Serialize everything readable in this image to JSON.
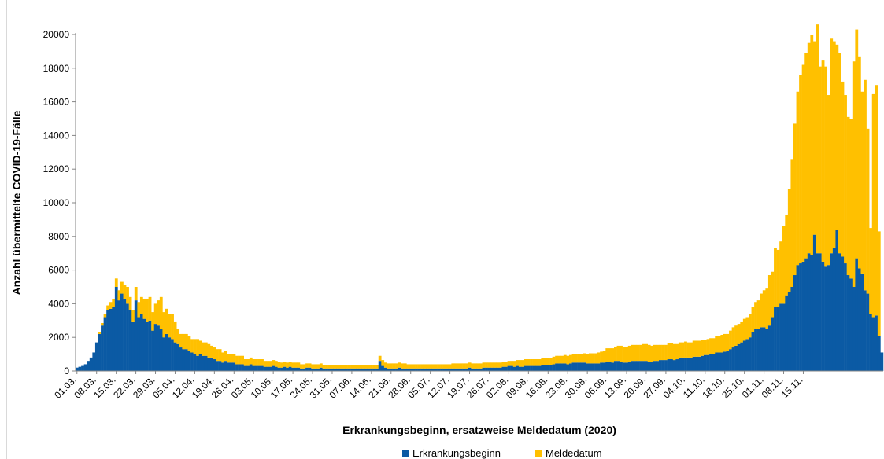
{
  "chart_data": {
    "type": "bar",
    "stacked": true,
    "xlabel": "Erkrankungsbeginn, ersatzweise Meldedatum (2020)",
    "ylabel": "Anzahl übermittelte COVID-19-Fälle",
    "ylim": [
      0,
      20000
    ],
    "y_ticks": [
      "0",
      "2000",
      "4000",
      "6000",
      "8000",
      "10000",
      "12000",
      "14000",
      "16000",
      "18000",
      "20000"
    ],
    "x_tick_labels": [
      "01.03.",
      "08.03.",
      "15.03.",
      "22.03.",
      "29.03.",
      "05.04.",
      "12.04.",
      "19.04.",
      "26.04.",
      "03.05.",
      "10.05.",
      "17.05.",
      "24.05.",
      "31.05.",
      "07.06.",
      "14.06.",
      "21.06.",
      "28.06.",
      "05.07.",
      "12.07.",
      "19.07.",
      "26.07.",
      "02.08.",
      "09.08.",
      "16.08.",
      "23.08.",
      "30.08.",
      "06.09.",
      "13.09.",
      "20.09.",
      "27.09.",
      "04.10.",
      "11.10.",
      "18.10.",
      "25.10.",
      "01.11.",
      "08.11.",
      "15.11."
    ],
    "legend_position": "bottom",
    "grid": false,
    "series": [
      {
        "name": "Erkrankungsbeginn",
        "color": "#0b5aa4",
        "values": [
          200,
          250,
          300,
          400,
          600,
          800,
          1100,
          1700,
          2200,
          2700,
          3200,
          3600,
          3700,
          3800,
          5000,
          4200,
          4600,
          4300,
          4000,
          3600,
          2900,
          4200,
          3200,
          3400,
          3100,
          2900,
          3000,
          2400,
          2800,
          2700,
          2500,
          2000,
          2200,
          2000,
          1900,
          1700,
          1600,
          1400,
          1300,
          1300,
          1200,
          1100,
          1000,
          900,
          1000,
          900,
          900,
          800,
          800,
          700,
          600,
          600,
          500,
          600,
          500,
          500,
          500,
          400,
          400,
          400,
          300,
          300,
          400,
          300,
          300,
          300,
          300,
          250,
          250,
          250,
          300,
          250,
          200,
          200,
          250,
          200,
          250,
          200,
          200,
          200,
          150,
          150,
          200,
          200,
          150,
          150,
          150,
          200,
          150,
          150,
          150,
          150,
          150,
          150,
          150,
          150,
          150,
          150,
          150,
          150,
          150,
          150,
          150,
          150,
          150,
          150,
          150,
          150,
          600,
          300,
          200,
          150,
          150,
          150,
          150,
          200,
          150,
          150,
          150,
          150,
          150,
          150,
          150,
          150,
          150,
          150,
          150,
          150,
          150,
          150,
          150,
          150,
          150,
          150,
          150,
          150,
          150,
          150,
          150,
          150,
          200,
          150,
          150,
          150,
          150,
          200,
          200,
          200,
          200,
          200,
          200,
          200,
          250,
          250,
          300,
          300,
          250,
          300,
          250,
          250,
          300,
          300,
          300,
          300,
          300,
          300,
          350,
          350,
          350,
          350,
          400,
          450,
          450,
          450,
          450,
          400,
          450,
          500,
          500,
          500,
          500,
          500,
          450,
          450,
          450,
          450,
          450,
          500,
          500,
          550,
          550,
          500,
          600,
          600,
          550,
          500,
          500,
          550,
          600,
          600,
          600,
          600,
          600,
          600,
          550,
          550,
          600,
          600,
          650,
          650,
          650,
          700,
          700,
          650,
          700,
          800,
          800,
          800,
          800,
          800,
          850,
          850,
          850,
          900,
          950,
          950,
          1000,
          1000,
          1100,
          1100,
          1100,
          1150,
          1200,
          1300,
          1400,
          1500,
          1600,
          1700,
          1800,
          1900,
          2000,
          2300,
          2500,
          2500,
          2600,
          2600,
          2500,
          2700,
          3200,
          3800,
          3800,
          4000,
          4000,
          4500,
          4700,
          5000,
          5700,
          6300,
          6400,
          6500,
          6700,
          7000,
          6900,
          8100,
          7000,
          7000,
          6500,
          6200,
          6300,
          7000,
          7300,
          8400,
          7000,
          6800,
          6400,
          5700,
          5500,
          5000,
          6700,
          6100,
          5800,
          4800,
          4600,
          3400,
          3200,
          3300,
          2100,
          1100
        ]
      },
      {
        "name": "Meldedatum",
        "color": "#ffc000",
        "values": [
          0,
          0,
          0,
          0,
          0,
          0,
          0,
          0,
          100,
          150,
          200,
          300,
          400,
          500,
          500,
          600,
          700,
          800,
          1000,
          800,
          700,
          800,
          900,
          1000,
          1200,
          1400,
          1400,
          1100,
          1200,
          1500,
          1900,
          1500,
          1500,
          1400,
          1500,
          1200,
          900,
          800,
          900,
          900,
          900,
          800,
          900,
          1000,
          800,
          800,
          800,
          800,
          700,
          700,
          700,
          700,
          600,
          600,
          500,
          500,
          500,
          500,
          500,
          500,
          400,
          400,
          400,
          400,
          400,
          400,
          400,
          350,
          350,
          350,
          350,
          350,
          350,
          300,
          300,
          300,
          300,
          300,
          300,
          300,
          250,
          250,
          250,
          250,
          250,
          250,
          250,
          250,
          200,
          200,
          200,
          200,
          200,
          200,
          200,
          200,
          200,
          200,
          200,
          200,
          200,
          200,
          200,
          200,
          200,
          200,
          200,
          200,
          300,
          350,
          300,
          300,
          300,
          300,
          300,
          300,
          300,
          300,
          250,
          250,
          250,
          250,
          250,
          250,
          250,
          250,
          250,
          250,
          250,
          250,
          250,
          250,
          250,
          250,
          300,
          300,
          300,
          300,
          300,
          300,
          300,
          300,
          300,
          300,
          300,
          300,
          300,
          300,
          300,
          300,
          300,
          300,
          300,
          300,
          300,
          300,
          350,
          350,
          400,
          400,
          400,
          400,
          400,
          400,
          400,
          400,
          400,
          400,
          400,
          400,
          450,
          450,
          450,
          450,
          500,
          500,
          500,
          500,
          500,
          500,
          500,
          550,
          550,
          600,
          600,
          600,
          650,
          650,
          700,
          800,
          800,
          850,
          850,
          900,
          950,
          950,
          950,
          950,
          950,
          950,
          950,
          950,
          1000,
          1000,
          1000,
          950,
          950,
          950,
          900,
          900,
          900,
          950,
          950,
          950,
          900,
          900,
          900,
          950,
          900,
          900,
          950,
          950,
          950,
          950,
          900,
          950,
          950,
          950,
          1000,
          1000,
          1050,
          1050,
          1000,
          1100,
          1200,
          1200,
          1200,
          1200,
          1300,
          1300,
          1400,
          1500,
          1600,
          1700,
          2000,
          2200,
          2400,
          3000,
          2700,
          3500,
          3400,
          3700,
          4600,
          4800,
          6100,
          7600,
          9000,
          10300,
          11200,
          11700,
          12200,
          12500,
          13100,
          11500,
          13600,
          11100,
          12000,
          11900,
          10100,
          12800,
          12300,
          11000,
          11900,
          10400,
          10000,
          9400,
          9500,
          13400,
          13600,
          12600,
          10800,
          12500,
          9800,
          5100,
          13300,
          13700,
          6200
        ]
      }
    ]
  }
}
